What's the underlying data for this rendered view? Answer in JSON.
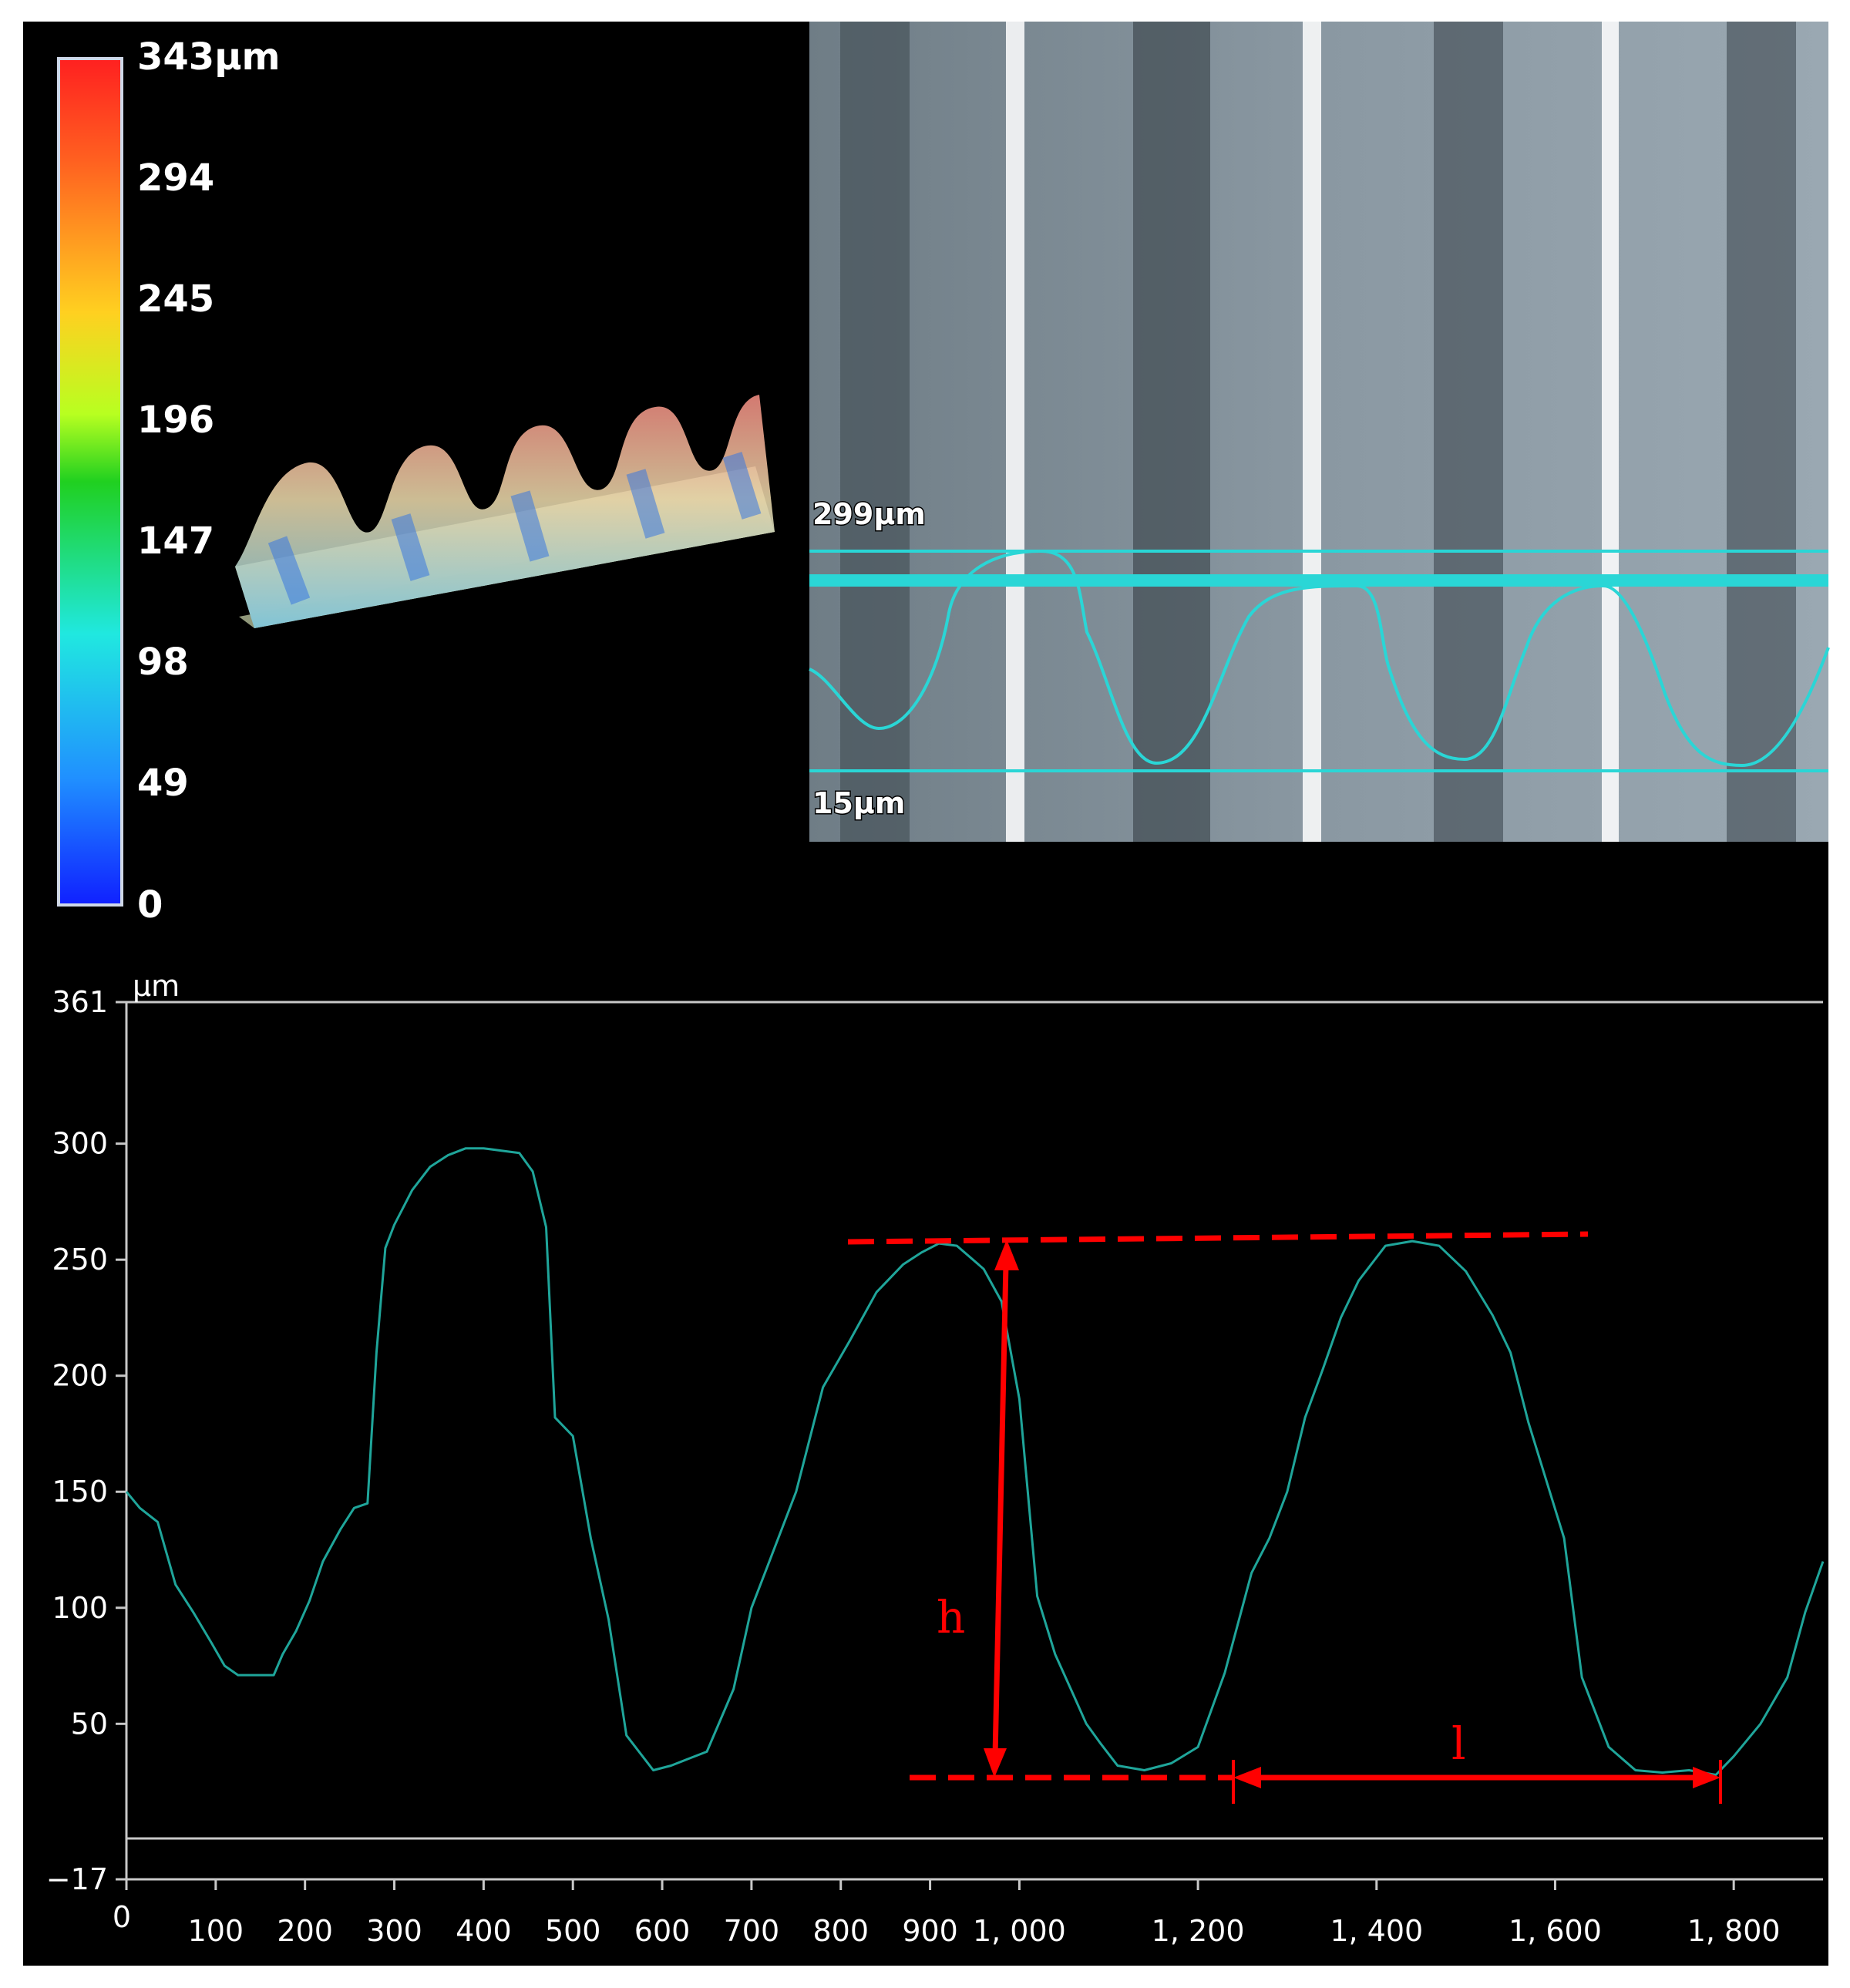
{
  "colorbar": {
    "ticks": [
      "343μm",
      "294",
      "245",
      "196",
      "147",
      "98",
      "49",
      "0"
    ],
    "colors": [
      "#ff2020",
      "#ff7a20",
      "#ffd020",
      "#c8ff20",
      "#20d020",
      "#20e8e0",
      "#2090ff",
      "#1020ff"
    ]
  },
  "photo": {
    "top_label": "299μm",
    "bottom_label": "15μm",
    "trace_color": "#2ad6d6"
  },
  "annotations": {
    "h": "h",
    "l": "l",
    "color": "#ff0000"
  },
  "chart_data": {
    "type": "line",
    "xlabel": "",
    "ylabel": "μm",
    "xlim": [
      0,
      1900
    ],
    "ylim": [
      -17,
      361
    ],
    "y_ticks": [
      "361",
      "300",
      "250",
      "200",
      "150",
      "100",
      "50",
      "−17"
    ],
    "y_tick_values": [
      361,
      300,
      250,
      200,
      150,
      100,
      50,
      -17
    ],
    "x_ticks": [
      "0",
      "100",
      "200",
      "300",
      "400",
      "500",
      "600",
      "700",
      "800",
      "900",
      "1, 000",
      "1, 200",
      "1, 400",
      "1, 600",
      "1, 800"
    ],
    "x_tick_values": [
      0,
      100,
      200,
      300,
      400,
      500,
      600,
      700,
      800,
      900,
      1000,
      1200,
      1400,
      1600,
      1800
    ],
    "series": [
      {
        "color": "#1fa59a",
        "x": [
          0,
          15,
          35,
          55,
          75,
          95,
          110,
          125,
          145,
          165,
          175,
          190,
          205,
          220,
          240,
          255,
          270,
          280,
          290,
          300,
          320,
          340,
          360,
          380,
          400,
          420,
          440,
          455,
          470,
          480,
          490,
          500,
          520,
          540,
          560,
          590,
          610,
          630,
          650,
          680,
          700,
          720,
          750,
          780,
          810,
          840,
          870,
          890,
          910,
          930,
          960,
          980,
          1000,
          1020,
          1040,
          1060,
          1075,
          1090,
          1110,
          1140,
          1170,
          1200,
          1230,
          1260,
          1280,
          1300,
          1320,
          1340,
          1360,
          1380,
          1410,
          1440,
          1470,
          1500,
          1530,
          1550,
          1570,
          1590,
          1610,
          1630,
          1660,
          1690,
          1720,
          1750,
          1780,
          1800,
          1830,
          1860,
          1880,
          1900
        ],
        "y": [
          150,
          143,
          137,
          110,
          98,
          85,
          75,
          71,
          71,
          71,
          80,
          90,
          103,
          120,
          134,
          143,
          145,
          210,
          255,
          265,
          280,
          290,
          295,
          298,
          298,
          297,
          296,
          288,
          264,
          182,
          178,
          174,
          130,
          95,
          45,
          30,
          32,
          35,
          38,
          65,
          100,
          120,
          150,
          195,
          215,
          236,
          248,
          253,
          257,
          256,
          246,
          232,
          190,
          105,
          80,
          63,
          50,
          42,
          32,
          30,
          33,
          40,
          72,
          115,
          130,
          150,
          182,
          203,
          225,
          241,
          256,
          258,
          256,
          245,
          226,
          210,
          180,
          155,
          130,
          70,
          40,
          30,
          29,
          30,
          28,
          36,
          50,
          70,
          98,
          120
        ]
      }
    ],
    "grid": false,
    "legend": "none"
  }
}
